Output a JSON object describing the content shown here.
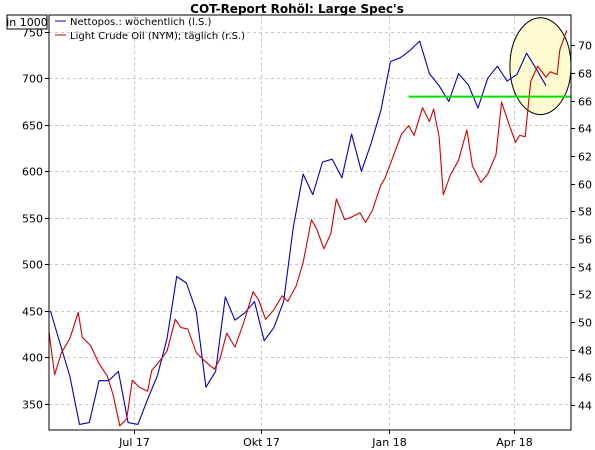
{
  "chart_data": {
    "type": "line",
    "title": "COT-Report Rohöl: Large Spec's",
    "unit_label": "in 1000",
    "x_ticks": [
      "Jul 17",
      "Okt 17",
      "Jan 18",
      "Apr 18"
    ],
    "left_axis": {
      "ylim": [
        322,
        768
      ],
      "ticks": [
        350,
        400,
        450,
        500,
        550,
        600,
        650,
        700,
        750
      ]
    },
    "right_axis": {
      "ylim": [
        42.2,
        72.2
      ],
      "ticks": [
        44,
        46,
        48,
        50,
        52,
        54,
        56,
        58,
        60,
        62,
        64,
        66,
        68,
        70
      ]
    },
    "grid": true,
    "legend_position": "top-left",
    "series": [
      {
        "name": "Nettopos.: wöchentlich (l.S.)",
        "axis": "left",
        "color": "#0000bb",
        "points": [
          [
            "2017-05-02",
            450
          ],
          [
            "2017-05-09",
            415
          ],
          [
            "2017-05-16",
            380
          ],
          [
            "2017-05-23",
            328
          ],
          [
            "2017-05-30",
            330
          ],
          [
            "2017-06-06",
            375
          ],
          [
            "2017-06-13",
            375
          ],
          [
            "2017-06-20",
            385
          ],
          [
            "2017-06-27",
            330
          ],
          [
            "2017-07-04",
            328
          ],
          [
            "2017-07-11",
            355
          ],
          [
            "2017-07-18",
            380
          ],
          [
            "2017-07-25",
            420
          ],
          [
            "2017-08-01",
            487
          ],
          [
            "2017-08-08",
            480
          ],
          [
            "2017-08-15",
            450
          ],
          [
            "2017-08-22",
            368
          ],
          [
            "2017-08-29",
            385
          ],
          [
            "2017-09-05",
            465
          ],
          [
            "2017-09-12",
            440
          ],
          [
            "2017-09-19",
            448
          ],
          [
            "2017-09-26",
            460
          ],
          [
            "2017-10-03",
            418
          ],
          [
            "2017-10-10",
            432
          ],
          [
            "2017-10-17",
            460
          ],
          [
            "2017-10-24",
            540
          ],
          [
            "2017-10-31",
            597
          ],
          [
            "2017-11-07",
            575
          ],
          [
            "2017-11-14",
            610
          ],
          [
            "2017-11-21",
            613
          ],
          [
            "2017-11-28",
            593
          ],
          [
            "2017-12-05",
            640
          ],
          [
            "2017-12-12",
            600
          ],
          [
            "2017-12-19",
            630
          ],
          [
            "2017-12-26",
            665
          ],
          [
            "2018-01-02",
            718
          ],
          [
            "2018-01-09",
            722
          ],
          [
            "2018-01-16",
            730
          ],
          [
            "2018-01-23",
            740
          ],
          [
            "2018-01-30",
            705
          ],
          [
            "2018-02-06",
            692
          ],
          [
            "2018-02-13",
            675
          ],
          [
            "2018-02-20",
            705
          ],
          [
            "2018-02-27",
            693
          ],
          [
            "2018-03-06",
            668
          ],
          [
            "2018-03-13",
            700
          ],
          [
            "2018-03-20",
            713
          ],
          [
            "2018-03-27",
            697
          ],
          [
            "2018-04-03",
            704
          ],
          [
            "2018-04-10",
            727
          ],
          [
            "2018-04-17",
            710
          ],
          [
            "2018-04-24",
            692
          ]
        ]
      },
      {
        "name": "Light Crude Oil (NYM); täglich (r.S.)",
        "axis": "right",
        "color": "#d00000",
        "points": [
          [
            "2017-05-01",
            49.3
          ],
          [
            "2017-05-05",
            46.2
          ],
          [
            "2017-05-10",
            47.8
          ],
          [
            "2017-05-16",
            48.8
          ],
          [
            "2017-05-22",
            50.7
          ],
          [
            "2017-05-25",
            48.9
          ],
          [
            "2017-05-31",
            48.3
          ],
          [
            "2017-06-06",
            47.0
          ],
          [
            "2017-06-12",
            46.1
          ],
          [
            "2017-06-16",
            44.8
          ],
          [
            "2017-06-21",
            42.5
          ],
          [
            "2017-06-26",
            43.0
          ],
          [
            "2017-06-30",
            45.8
          ],
          [
            "2017-07-05",
            45.3
          ],
          [
            "2017-07-11",
            45.0
          ],
          [
            "2017-07-14",
            46.5
          ],
          [
            "2017-07-19",
            47.1
          ],
          [
            "2017-07-25",
            47.9
          ],
          [
            "2017-07-31",
            50.2
          ],
          [
            "2017-08-04",
            49.6
          ],
          [
            "2017-08-09",
            49.5
          ],
          [
            "2017-08-15",
            47.8
          ],
          [
            "2017-08-21",
            47.2
          ],
          [
            "2017-08-28",
            46.6
          ],
          [
            "2017-09-01",
            47.3
          ],
          [
            "2017-09-06",
            49.2
          ],
          [
            "2017-09-12",
            48.2
          ],
          [
            "2017-09-18",
            49.9
          ],
          [
            "2017-09-25",
            52.2
          ],
          [
            "2017-09-29",
            51.6
          ],
          [
            "2017-10-04",
            50.2
          ],
          [
            "2017-10-10",
            50.9
          ],
          [
            "2017-10-16",
            51.9
          ],
          [
            "2017-10-20",
            51.5
          ],
          [
            "2017-10-26",
            52.6
          ],
          [
            "2017-10-31",
            54.3
          ],
          [
            "2017-11-06",
            57.4
          ],
          [
            "2017-11-10",
            56.7
          ],
          [
            "2017-11-15",
            55.3
          ],
          [
            "2017-11-20",
            56.4
          ],
          [
            "2017-11-24",
            58.9
          ],
          [
            "2017-11-30",
            57.4
          ],
          [
            "2017-12-05",
            57.6
          ],
          [
            "2017-12-11",
            57.9
          ],
          [
            "2017-12-15",
            57.2
          ],
          [
            "2017-12-20",
            58.1
          ],
          [
            "2017-12-26",
            59.9
          ],
          [
            "2017-12-29",
            60.4
          ],
          [
            "2018-01-04",
            62.0
          ],
          [
            "2018-01-10",
            63.6
          ],
          [
            "2018-01-15",
            64.2
          ],
          [
            "2018-01-19",
            63.5
          ],
          [
            "2018-01-25",
            65.5
          ],
          [
            "2018-01-30",
            64.5
          ],
          [
            "2018-02-02",
            65.4
          ],
          [
            "2018-02-06",
            63.4
          ],
          [
            "2018-02-09",
            59.2
          ],
          [
            "2018-02-14",
            60.6
          ],
          [
            "2018-02-20",
            61.7
          ],
          [
            "2018-02-26",
            63.9
          ],
          [
            "2018-03-02",
            61.3
          ],
          [
            "2018-03-08",
            60.1
          ],
          [
            "2018-03-13",
            60.7
          ],
          [
            "2018-03-19",
            62.1
          ],
          [
            "2018-03-23",
            65.9
          ],
          [
            "2018-03-28",
            64.4
          ],
          [
            "2018-04-02",
            63.0
          ],
          [
            "2018-04-05",
            63.5
          ],
          [
            "2018-04-09",
            63.4
          ],
          [
            "2018-04-13",
            67.4
          ],
          [
            "2018-04-18",
            68.5
          ],
          [
            "2018-04-24",
            67.7
          ],
          [
            "2018-04-27",
            68.1
          ],
          [
            "2018-05-02",
            67.9
          ],
          [
            "2018-05-04",
            69.7
          ],
          [
            "2018-05-09",
            71.1
          ]
        ]
      }
    ],
    "annotations": [
      {
        "type": "horizontal-line",
        "axis": "right",
        "value": 66.3,
        "x_from": "2018-01-15",
        "x_to": "2018-05-12",
        "color": "#00e000"
      },
      {
        "type": "highlight-ellipse",
        "x_from": "2018-03-29",
        "x_to": "2018-05-12",
        "y_from_right": 65.0,
        "y_to_right": 72.0,
        "fill": "#fffbd0",
        "stroke": "#000000"
      }
    ]
  }
}
